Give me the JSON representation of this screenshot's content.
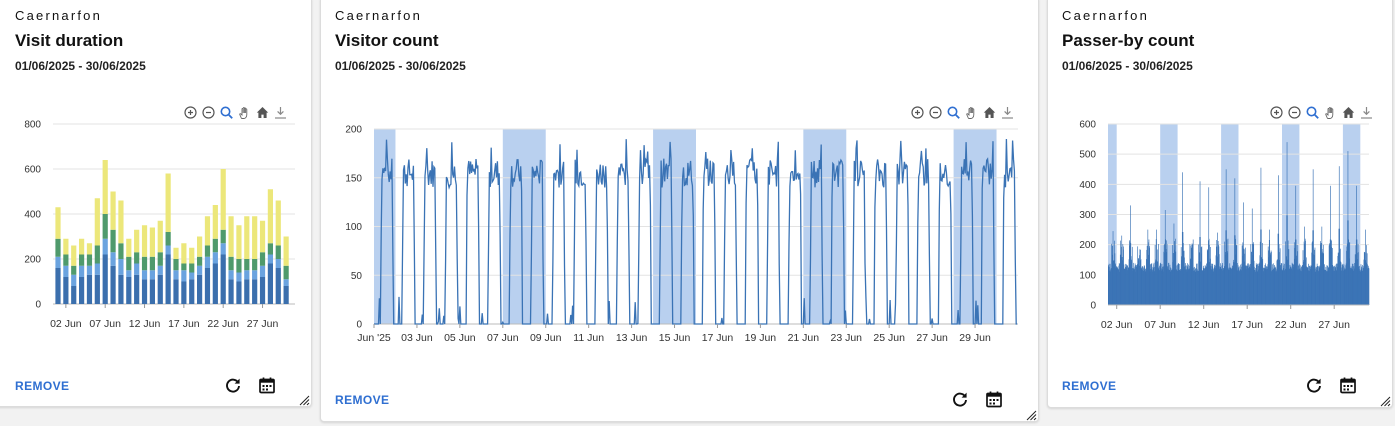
{
  "cards": [
    {
      "site": "Caernarfon",
      "title": "Visit duration",
      "date_range": "01/06/2025 - 30/06/2025",
      "remove_label": "REMOVE"
    },
    {
      "site": "Caernarfon",
      "title": "Visitor count",
      "date_range": "01/06/2025 - 30/06/2025",
      "remove_label": "REMOVE"
    },
    {
      "site": "Caernarfon",
      "title": "Passer-by count",
      "date_range": "01/06/2025 - 30/06/2025",
      "remove_label": "REMOVE"
    }
  ],
  "toolbar_icons": [
    "zoom-in-icon",
    "zoom-out-icon",
    "zoom-select-icon",
    "pan-hand-icon",
    "home-icon",
    "download-icon"
  ],
  "action_icons": [
    "refresh-icon",
    "calendar-icon"
  ],
  "colors": {
    "accent": "#2f6fd1",
    "bar_dark": "#3b6fad",
    "bar_light": "#6aa3df",
    "bar_green": "#4f9a6c",
    "bar_yellow": "#ece77a",
    "line": "#3a73b5",
    "weekend_band": "#b9d0ef"
  },
  "chart_data": [
    {
      "type": "bar",
      "stacked": true,
      "x_ticks": [
        "02 Jun",
        "07 Jun",
        "12 Jun",
        "17 Jun",
        "22 Jun",
        "27 Jun"
      ],
      "y_ticks": [
        "0",
        "200",
        "400",
        "600",
        "800"
      ],
      "ylim": [
        0,
        800
      ],
      "categories": [
        "01 Jun",
        "02 Jun",
        "03 Jun",
        "04 Jun",
        "05 Jun",
        "06 Jun",
        "07 Jun",
        "08 Jun",
        "09 Jun",
        "10 Jun",
        "11 Jun",
        "12 Jun",
        "13 Jun",
        "14 Jun",
        "15 Jun",
        "16 Jun",
        "17 Jun",
        "18 Jun",
        "19 Jun",
        "20 Jun",
        "21 Jun",
        "22 Jun",
        "23 Jun",
        "24 Jun",
        "25 Jun",
        "26 Jun",
        "27 Jun",
        "28 Jun",
        "29 Jun",
        "30 Jun"
      ],
      "series": [
        {
          "values": [
            160,
            120,
            80,
            120,
            130,
            130,
            220,
            170,
            130,
            120,
            130,
            110,
            110,
            130,
            220,
            110,
            100,
            110,
            130,
            160,
            180,
            220,
            110,
            100,
            110,
            110,
            120,
            180,
            160,
            80
          ]
        },
        {
          "values": [
            50,
            50,
            50,
            50,
            40,
            50,
            70,
            60,
            70,
            30,
            50,
            40,
            40,
            40,
            40,
            40,
            50,
            30,
            40,
            50,
            50,
            50,
            40,
            40,
            40,
            40,
            50,
            40,
            40,
            30
          ]
        },
        {
          "values": [
            80,
            50,
            40,
            50,
            50,
            80,
            110,
            100,
            70,
            60,
            50,
            60,
            60,
            60,
            60,
            50,
            30,
            40,
            40,
            50,
            60,
            60,
            60,
            60,
            50,
            50,
            60,
            50,
            60,
            60
          ]
        },
        {
          "values": [
            140,
            70,
            90,
            70,
            50,
            210,
            240,
            170,
            190,
            80,
            100,
            140,
            130,
            140,
            260,
            50,
            90,
            70,
            90,
            130,
            150,
            270,
            180,
            150,
            190,
            190,
            140,
            240,
            200,
            130
          ]
        }
      ]
    },
    {
      "type": "line",
      "x_ticks": [
        "Jun '25",
        "03 Jun",
        "05 Jun",
        "07 Jun",
        "09 Jun",
        "11 Jun",
        "13 Jun",
        "15 Jun",
        "17 Jun",
        "19 Jun",
        "21 Jun",
        "23 Jun",
        "25 Jun",
        "27 Jun",
        "29 Jun"
      ],
      "y_ticks": [
        "0",
        "50",
        "100",
        "150",
        "200"
      ],
      "ylim": [
        0,
        200
      ],
      "xlim_days": [
        1,
        31
      ],
      "weekend_bands_days": [
        [
          1,
          2
        ],
        [
          7,
          9
        ],
        [
          14,
          16
        ],
        [
          21,
          23
        ],
        [
          28,
          30
        ]
      ],
      "hourly_pattern": "open hours around 140–180, closed hours drop to 0"
    },
    {
      "type": "bar",
      "x_ticks": [
        "02 Jun",
        "07 Jun",
        "12 Jun",
        "17 Jun",
        "22 Jun",
        "27 Jun"
      ],
      "y_ticks": [
        "0",
        "100",
        "200",
        "300",
        "400",
        "500",
        "600"
      ],
      "ylim": [
        0,
        600
      ],
      "xlim_days": [
        1,
        31
      ],
      "weekend_bands_days": [
        [
          1,
          2
        ],
        [
          7,
          9
        ],
        [
          14,
          16
        ],
        [
          21,
          23
        ],
        [
          28,
          30
        ]
      ],
      "daily_peaks": [
        245,
        230,
        330,
        130,
        250,
        250,
        315,
        270,
        440,
        190,
        410,
        390,
        240,
        450,
        420,
        340,
        320,
        455,
        250,
        430,
        540,
        395,
        260,
        450,
        260,
        395,
        460,
        510,
        395,
        250
      ]
    }
  ]
}
